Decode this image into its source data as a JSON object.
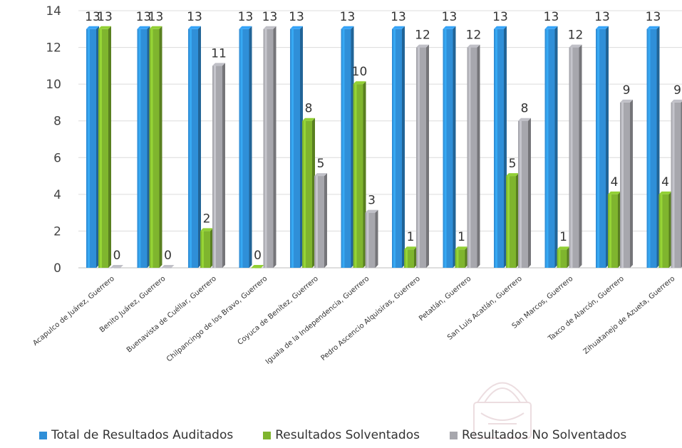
{
  "chart_data": {
    "type": "bar",
    "ylim": [
      0,
      14
    ],
    "yticks": [
      0,
      2,
      4,
      6,
      8,
      10,
      12,
      14
    ],
    "grid": true,
    "legend_position": "bottom",
    "categories": [
      "Acapulco de Juárez, Guerrero",
      "Benito Juárez, Guerrero",
      "Buenavista de Cuéllar, Guerrero",
      "Chilpancingo de los Bravo, Guerrero",
      "Coyuca de Benítez, Guerrero",
      "Iguala de la Independencia, Guerrero",
      "Pedro Ascencio Alquisiras, Guerrero",
      "Petatlán, Guerrero",
      "San Luis Acatlán, Guerrero",
      "San Marcos, Guerrero",
      "Taxco de Alarcón, Guerrero",
      "Zihuatanejo de Azueta, Guerrero"
    ],
    "series": [
      {
        "name": "Total de Resultados Auditados",
        "color": "#2f8fd8",
        "values": [
          13,
          13,
          13,
          13,
          13,
          13,
          13,
          13,
          13,
          13,
          13,
          13
        ]
      },
      {
        "name": "Resultados Solventados",
        "color": "#7fb52e",
        "values": [
          13,
          13,
          2,
          0,
          8,
          10,
          1,
          1,
          5,
          1,
          4,
          4
        ]
      },
      {
        "name": "Resultados No Solventados",
        "color": "#a7a7ad",
        "values": [
          0,
          0,
          11,
          13,
          5,
          3,
          12,
          12,
          8,
          12,
          9,
          9
        ]
      }
    ]
  },
  "legend": {
    "items": [
      {
        "label": "Total de Resultados Auditados",
        "color": "#2f8fd8"
      },
      {
        "label": "Resultados Solventados",
        "color": "#7fb52e"
      },
      {
        "label": "Resultados No Solventados",
        "color": "#a7a7ad"
      }
    ]
  }
}
